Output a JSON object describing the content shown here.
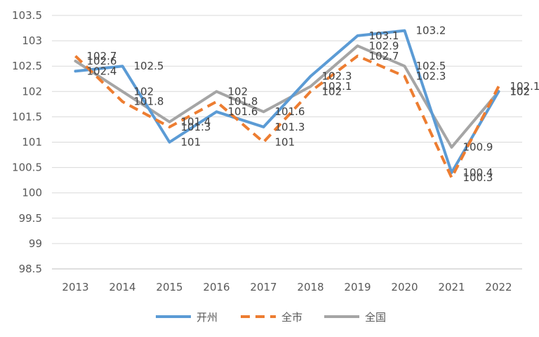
{
  "chart_data": {
    "type": "line",
    "title": "",
    "xlabel": "",
    "ylabel": "",
    "categories": [
      "2013",
      "2014",
      "2015",
      "2016",
      "2017",
      "2018",
      "2019",
      "2020",
      "2021",
      "2022"
    ],
    "ylim": [
      98.5,
      103.5
    ],
    "yticks": [
      "98.5",
      "99",
      "99.5",
      "100",
      "100.5",
      "101",
      "101.5",
      "102",
      "102.5",
      "103",
      "103.5"
    ],
    "grid": "horizontal",
    "legend_position": "bottom",
    "series": [
      {
        "name": "开州",
        "color": "#5B9BD5",
        "style": "solid",
        "values": [
          102.4,
          102.5,
          101,
          101.6,
          101.3,
          102.3,
          103.1,
          103.2,
          100.4,
          102
        ],
        "labels": [
          "102.4",
          "102.5",
          "101",
          "101.6",
          "101.3",
          "102.3",
          "103.1",
          "103.2",
          "100.4",
          "102"
        ]
      },
      {
        "name": "全市",
        "color": "#ED7D31",
        "style": "dashed",
        "values": [
          102.7,
          101.8,
          101.3,
          101.8,
          101,
          102,
          102.7,
          102.3,
          100.3,
          102.1
        ],
        "labels": [
          "102.7",
          "101.8",
          "101.3",
          "101.8",
          "101",
          "102",
          "102.7",
          "102.3",
          "100.3",
          "102.1"
        ]
      },
      {
        "name": "全国",
        "color": "#A5A5A5",
        "style": "solid",
        "values": [
          102.6,
          102,
          101.4,
          102,
          101.6,
          102.1,
          102.9,
          102.5,
          100.9,
          102
        ],
        "labels": [
          "102.6",
          "102",
          "101.4",
          "102",
          "101.6",
          "102.1",
          "102.9",
          "102.5",
          "100.9",
          "102"
        ]
      }
    ]
  }
}
